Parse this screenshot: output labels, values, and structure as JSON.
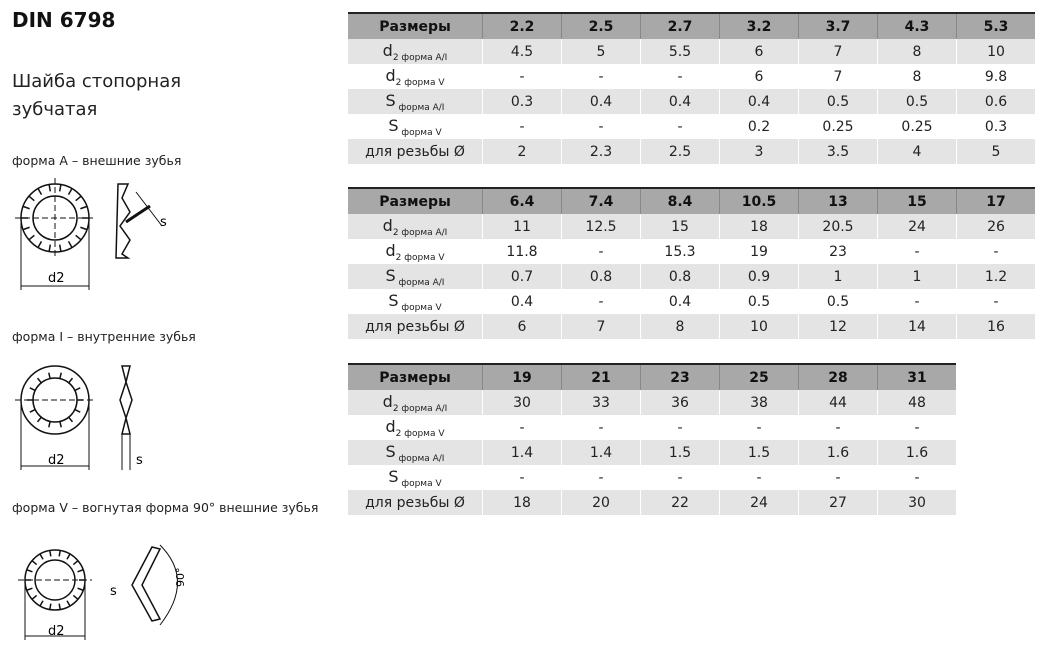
{
  "title": "DIN 6798",
  "subtitle": "Шайба стопорная зубчатая",
  "forms": [
    {
      "caption": "форма A – внешние зубья",
      "d_label": "d2",
      "s_label": "s"
    },
    {
      "caption": "форма I – внутренние зубья",
      "d_label": "d2",
      "s_label": "s"
    },
    {
      "caption": "форма V – вогнутая форма 90° внешние зубья",
      "d_label": "d2",
      "s_label": "s",
      "angle_label": "90°"
    }
  ],
  "row_labels": {
    "header": "Размеры",
    "d2ai": "d",
    "d2ai_sub": "2 форма A/I",
    "d2v": "d",
    "d2v_sub": "2 форма V",
    "sai": "S",
    "sai_sub": " форма A/I",
    "sv": "S",
    "sv_sub": " форма V",
    "thread": "для резьбы Ø"
  },
  "tables": [
    {
      "sizes": [
        "2.2",
        "2.5",
        "2.7",
        "3.2",
        "3.7",
        "4.3",
        "5.3"
      ],
      "d2ai": [
        "4.5",
        "5",
        "5.5",
        "6",
        "7",
        "8",
        "10"
      ],
      "d2v": [
        "-",
        "-",
        "-",
        "6",
        "7",
        "8",
        "9.8"
      ],
      "sai": [
        "0.3",
        "0.4",
        "0.4",
        "0.4",
        "0.5",
        "0.5",
        "0.6"
      ],
      "sv": [
        "-",
        "-",
        "-",
        "0.2",
        "0.25",
        "0.25",
        "0.3"
      ],
      "thread": [
        "2",
        "2.3",
        "2.5",
        "3",
        "3.5",
        "4",
        "5"
      ]
    },
    {
      "sizes": [
        "6.4",
        "7.4",
        "8.4",
        "10.5",
        "13",
        "15",
        "17"
      ],
      "d2ai": [
        "11",
        "12.5",
        "15",
        "18",
        "20.5",
        "24",
        "26"
      ],
      "d2v": [
        "11.8",
        "-",
        "15.3",
        "19",
        "23",
        "-",
        "-"
      ],
      "sai": [
        "0.7",
        "0.8",
        "0.8",
        "0.9",
        "1",
        "1",
        "1.2"
      ],
      "sv": [
        "0.4",
        "-",
        "0.4",
        "0.5",
        "0.5",
        "-",
        "-"
      ],
      "thread": [
        "6",
        "7",
        "8",
        "10",
        "12",
        "14",
        "16"
      ]
    },
    {
      "sizes": [
        "19",
        "21",
        "23",
        "25",
        "28",
        "31"
      ],
      "d2ai": [
        "30",
        "33",
        "36",
        "38",
        "44",
        "48"
      ],
      "d2v": [
        "-",
        "-",
        "-",
        "-",
        "-",
        "-"
      ],
      "sai": [
        "1.4",
        "1.4",
        "1.5",
        "1.5",
        "1.6",
        "1.6"
      ],
      "sv": [
        "-",
        "-",
        "-",
        "-",
        "-",
        "-"
      ],
      "thread": [
        "18",
        "20",
        "22",
        "24",
        "27",
        "30"
      ]
    }
  ]
}
